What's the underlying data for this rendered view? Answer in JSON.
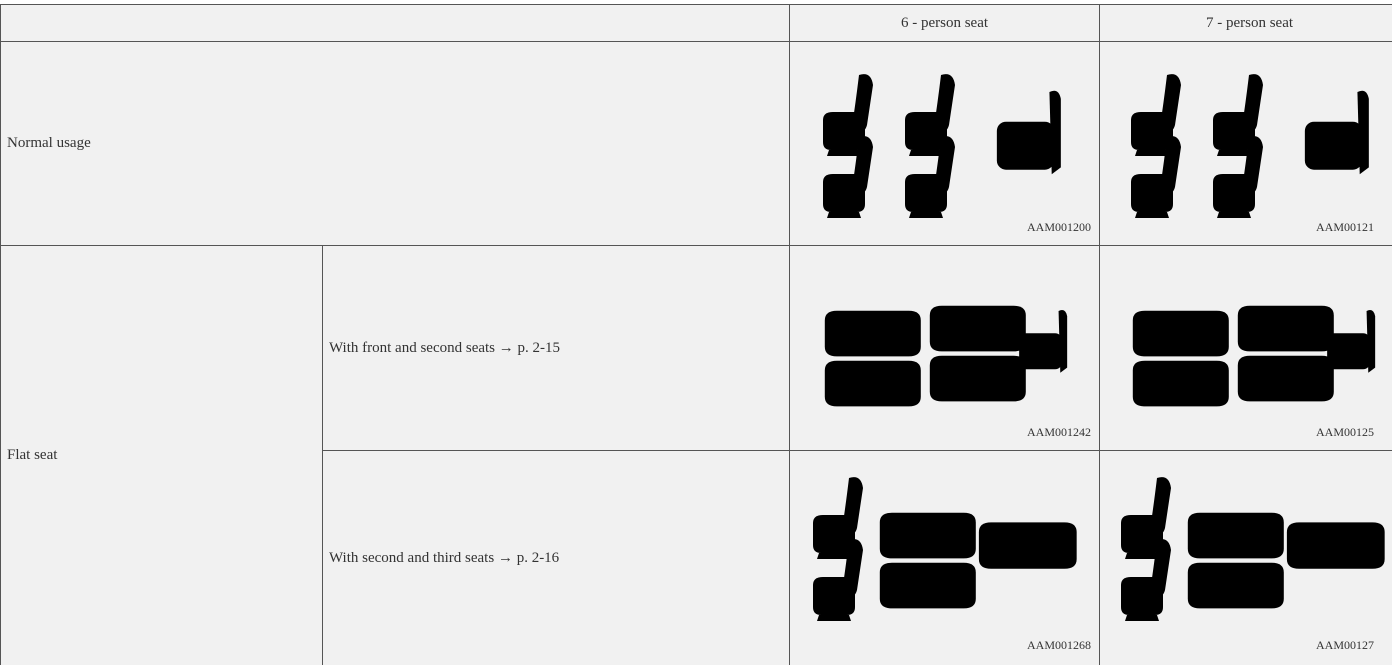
{
  "table": {
    "header": [
      "6 - person seat",
      "7 - person seat"
    ],
    "rows": [
      {
        "label": "Normal usage",
        "images": [
          "AAM001200",
          "AAM00121"
        ]
      },
      {
        "label": "Flat seat",
        "sub": [
          {
            "label": "With front and second seats → p. 2-15",
            "images": [
              "AAM001242",
              "AAM00125"
            ]
          },
          {
            "label": "With second and third seats → p. 2-16",
            "images": [
              "AAM001268",
              "AAM00127"
            ]
          }
        ]
      }
    ]
  }
}
